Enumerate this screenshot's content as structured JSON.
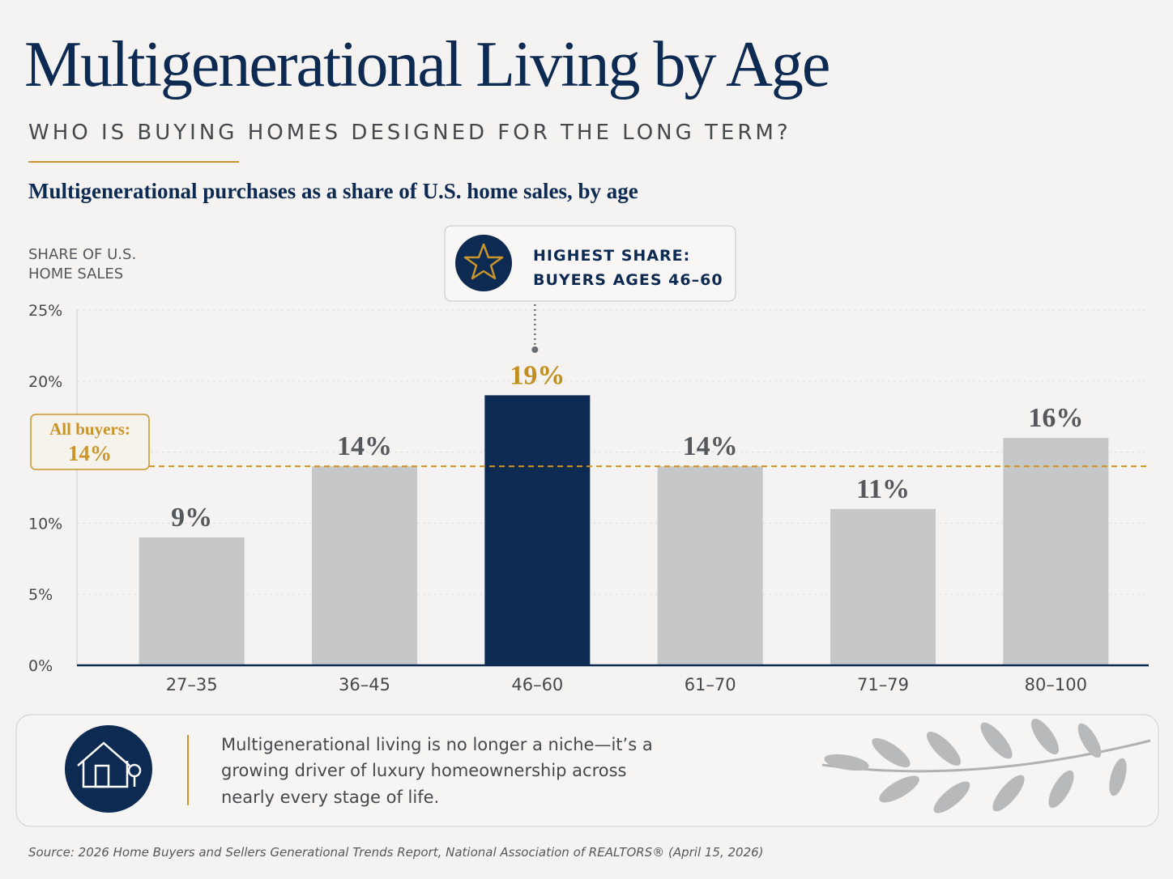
{
  "title": "Multigenerational Living by Age",
  "subtitle": "WHO IS BUYING HOMES DESIGNED FOR THE LONG TERM?",
  "chart_data": {
    "type": "bar",
    "title": "Multigenerational purchases as a share of U.S. home sales, by age",
    "y_label": [
      "SHARE OF U.S.",
      "HOME SALES"
    ],
    "categories": [
      "27–35",
      "36–45",
      "46–60",
      "61–70",
      "71–79",
      "80–100"
    ],
    "values": [
      9,
      14,
      19,
      14,
      11,
      16
    ],
    "value_labels": [
      "9%",
      "14%",
      "19%",
      "14%",
      "11%",
      "16%"
    ],
    "colors": [
      "#c6c7c9",
      "#c6c7c9",
      "#0d2a52",
      "#c6c7c9",
      "#c6c7c9",
      "#c6c7c9"
    ],
    "value_label_colors": [
      "#55585d",
      "#55585d",
      "#c18f1f",
      "#55585d",
      "#55585d",
      "#55585d"
    ],
    "ylim": [
      0,
      25
    ],
    "yticks": [
      {
        "value": 0,
        "label": "0%"
      },
      {
        "value": 5,
        "label": "5%"
      },
      {
        "value": 10,
        "label": "10%"
      },
      {
        "value": 15,
        "label": ""
      },
      {
        "value": 20,
        "label": "20%"
      },
      {
        "value": 25,
        "label": "25%"
      }
    ],
    "grid": true,
    "reference_line": {
      "label": "All buyers:",
      "value": 14,
      "value_label": "14%",
      "color": "#c9952a"
    },
    "callout": {
      "lines": [
        "HIGHEST SHARE:",
        "BUYERS AGES 46–60"
      ],
      "category_index": 2
    }
  },
  "note": [
    "Multigenerational living is no longer a niche—it’s a",
    "growing driver of luxury homeownership across",
    "nearly every stage of life."
  ],
  "source": "Source: 2026 Home Buyers and Sellers Generational Trends Report, National Association of REALTORS® (April 15, 2026)"
}
